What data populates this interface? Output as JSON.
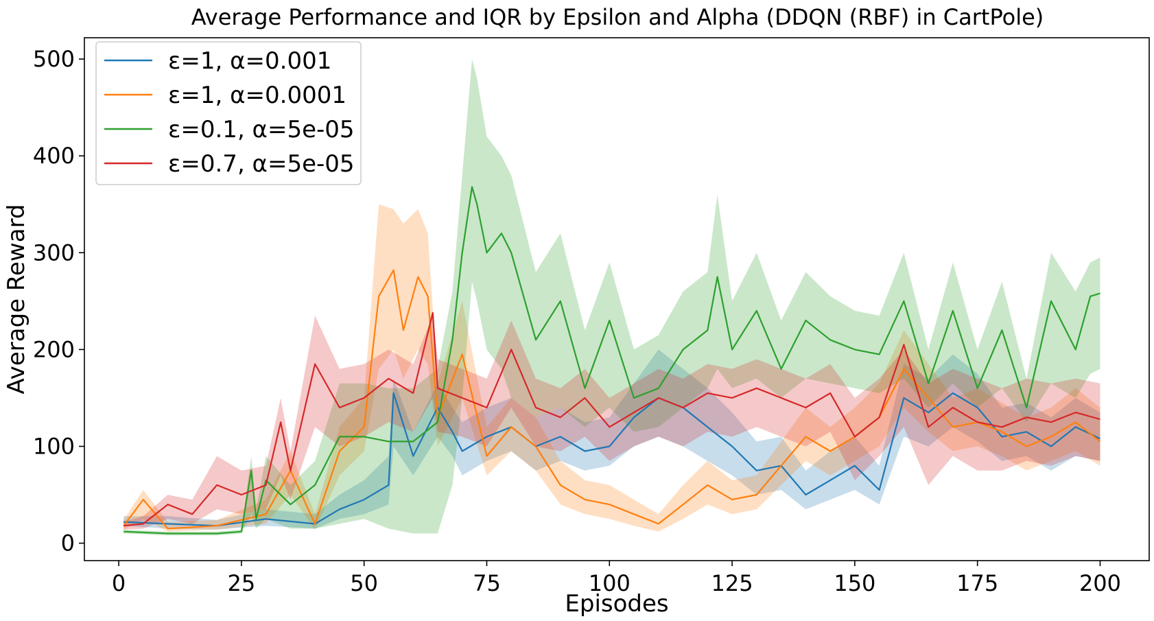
{
  "chart_data": {
    "type": "line",
    "title": "Average Performance and IQR by Epsilon and Alpha (DDQN (RBF) in CartPole)",
    "xlabel": "Episodes",
    "ylabel": "Average Reward",
    "xlim": [
      -7,
      210
    ],
    "ylim": [
      -18,
      522
    ],
    "xticks": [
      0,
      25,
      50,
      75,
      100,
      125,
      150,
      175,
      200
    ],
    "yticks": [
      0,
      100,
      200,
      300,
      400,
      500
    ],
    "grid": false,
    "legend": "top-left",
    "band": "IQR",
    "series": [
      {
        "name": "ε=1, α=0.001",
        "color": "#1f77b4",
        "x": [
          1,
          10,
          20,
          30,
          40,
          45,
          50,
          55,
          56,
          60,
          65,
          68,
          70,
          75,
          80,
          85,
          90,
          95,
          100,
          105,
          110,
          115,
          120,
          125,
          130,
          135,
          140,
          145,
          150,
          155,
          160,
          165,
          170,
          175,
          180,
          185,
          190,
          195,
          200
        ],
        "values": [
          22,
          20,
          18,
          25,
          20,
          35,
          45,
          60,
          155,
          90,
          140,
          115,
          95,
          110,
          120,
          100,
          110,
          95,
          100,
          130,
          150,
          140,
          120,
          100,
          75,
          80,
          50,
          65,
          80,
          55,
          150,
          135,
          155,
          140,
          110,
          115,
          100,
          120,
          108
        ],
        "q1": [
          18,
          15,
          14,
          18,
          15,
          25,
          30,
          40,
          100,
          70,
          110,
          90,
          70,
          85,
          95,
          75,
          85,
          75,
          80,
          100,
          110,
          100,
          85,
          70,
          50,
          55,
          35,
          45,
          55,
          40,
          110,
          100,
          120,
          105,
          85,
          90,
          75,
          90,
          85
        ],
        "q3": [
          28,
          28,
          24,
          35,
          30,
          50,
          65,
          90,
          170,
          115,
          165,
          140,
          125,
          140,
          150,
          130,
          140,
          125,
          130,
          165,
          200,
          180,
          160,
          135,
          105,
          110,
          75,
          95,
          110,
          80,
          185,
          170,
          195,
          175,
          140,
          145,
          130,
          150,
          135
        ]
      },
      {
        "name": "ε=1, α=0.0001",
        "color": "#ff7f0e",
        "x": [
          1,
          5,
          10,
          20,
          30,
          35,
          40,
          45,
          50,
          53,
          56,
          58,
          61,
          63,
          65,
          70,
          75,
          80,
          85,
          90,
          95,
          100,
          105,
          110,
          115,
          120,
          125,
          130,
          135,
          140,
          145,
          150,
          155,
          160,
          165,
          170,
          175,
          180,
          185,
          190,
          195,
          200
        ],
        "values": [
          18,
          45,
          15,
          18,
          30,
          75,
          20,
          95,
          120,
          255,
          282,
          220,
          275,
          255,
          130,
          195,
          90,
          120,
          100,
          60,
          45,
          40,
          30,
          20,
          40,
          60,
          45,
          50,
          80,
          110,
          95,
          110,
          130,
          180,
          150,
          120,
          125,
          115,
          100,
          110,
          125,
          105
        ],
        "q1": [
          14,
          25,
          12,
          14,
          20,
          50,
          14,
          70,
          95,
          180,
          200,
          170,
          200,
          185,
          100,
          150,
          70,
          95,
          75,
          40,
          30,
          25,
          18,
          12,
          25,
          40,
          30,
          35,
          60,
          85,
          70,
          85,
          100,
          140,
          115,
          95,
          100,
          90,
          75,
          85,
          95,
          80
        ],
        "q3": [
          24,
          55,
          22,
          24,
          45,
          95,
          30,
          120,
          150,
          350,
          345,
          330,
          345,
          320,
          165,
          250,
          120,
          150,
          130,
          85,
          65,
          60,
          45,
          30,
          60,
          85,
          65,
          70,
          105,
          140,
          120,
          140,
          165,
          220,
          185,
          150,
          160,
          145,
          130,
          140,
          160,
          140
        ]
      },
      {
        "name": "ε=0.1, α=5e-05",
        "color": "#2ca02c",
        "x": [
          1,
          10,
          20,
          25,
          27,
          28,
          30,
          35,
          40,
          45,
          50,
          55,
          60,
          65,
          68,
          70,
          72,
          73,
          75,
          78,
          80,
          85,
          90,
          95,
          100,
          105,
          110,
          115,
          120,
          122,
          125,
          130,
          135,
          140,
          145,
          150,
          155,
          160,
          165,
          170,
          175,
          180,
          185,
          190,
          195,
          198,
          200
        ],
        "values": [
          12,
          10,
          10,
          12,
          75,
          25,
          65,
          40,
          60,
          110,
          110,
          105,
          105,
          125,
          210,
          300,
          368,
          350,
          300,
          320,
          300,
          210,
          250,
          160,
          230,
          150,
          160,
          200,
          220,
          275,
          200,
          240,
          180,
          230,
          210,
          200,
          195,
          250,
          165,
          240,
          160,
          220,
          140,
          250,
          200,
          255,
          258
        ],
        "q1": [
          10,
          8,
          8,
          10,
          30,
          15,
          25,
          15,
          15,
          20,
          25,
          15,
          10,
          10,
          60,
          150,
          270,
          250,
          200,
          180,
          150,
          130,
          140,
          120,
          140,
          115,
          120,
          140,
          160,
          180,
          160,
          170,
          150,
          170,
          165,
          160,
          155,
          170,
          140,
          165,
          140,
          160,
          125,
          165,
          150,
          175,
          180
        ],
        "q3": [
          14,
          12,
          12,
          14,
          90,
          35,
          90,
          60,
          85,
          165,
          165,
          160,
          160,
          180,
          260,
          380,
          500,
          480,
          420,
          400,
          380,
          280,
          320,
          220,
          290,
          200,
          215,
          260,
          280,
          360,
          250,
          300,
          230,
          280,
          255,
          240,
          235,
          300,
          200,
          290,
          200,
          270,
          170,
          300,
          260,
          290,
          295
        ]
      },
      {
        "name": "ε=0.7, α=5e-05",
        "color": "#d62728",
        "x": [
          1,
          5,
          10,
          15,
          20,
          25,
          30,
          33,
          35,
          40,
          45,
          50,
          55,
          60,
          64,
          65,
          70,
          75,
          80,
          85,
          90,
          95,
          100,
          105,
          110,
          115,
          120,
          125,
          130,
          135,
          140,
          145,
          150,
          155,
          160,
          165,
          170,
          175,
          180,
          185,
          190,
          195,
          200
        ],
        "values": [
          18,
          20,
          40,
          30,
          60,
          50,
          60,
          125,
          75,
          185,
          140,
          150,
          170,
          155,
          238,
          160,
          150,
          140,
          200,
          140,
          130,
          150,
          120,
          135,
          150,
          140,
          155,
          150,
          160,
          150,
          140,
          155,
          110,
          130,
          205,
          120,
          140,
          125,
          120,
          130,
          125,
          135,
          128
        ],
        "q1": [
          14,
          15,
          25,
          20,
          35,
          30,
          35,
          70,
          45,
          120,
          100,
          110,
          125,
          115,
          150,
          115,
          110,
          100,
          140,
          100,
          95,
          110,
          85,
          100,
          110,
          100,
          115,
          110,
          120,
          110,
          100,
          115,
          65,
          90,
          120,
          60,
          90,
          75,
          75,
          85,
          80,
          90,
          85
        ],
        "q3": [
          22,
          28,
          50,
          45,
          90,
          75,
          80,
          150,
          95,
          235,
          180,
          185,
          200,
          185,
          235,
          190,
          180,
          170,
          230,
          170,
          160,
          180,
          150,
          165,
          180,
          170,
          185,
          180,
          190,
          180,
          170,
          185,
          150,
          170,
          200,
          165,
          180,
          170,
          160,
          170,
          165,
          170,
          165
        ]
      }
    ]
  }
}
